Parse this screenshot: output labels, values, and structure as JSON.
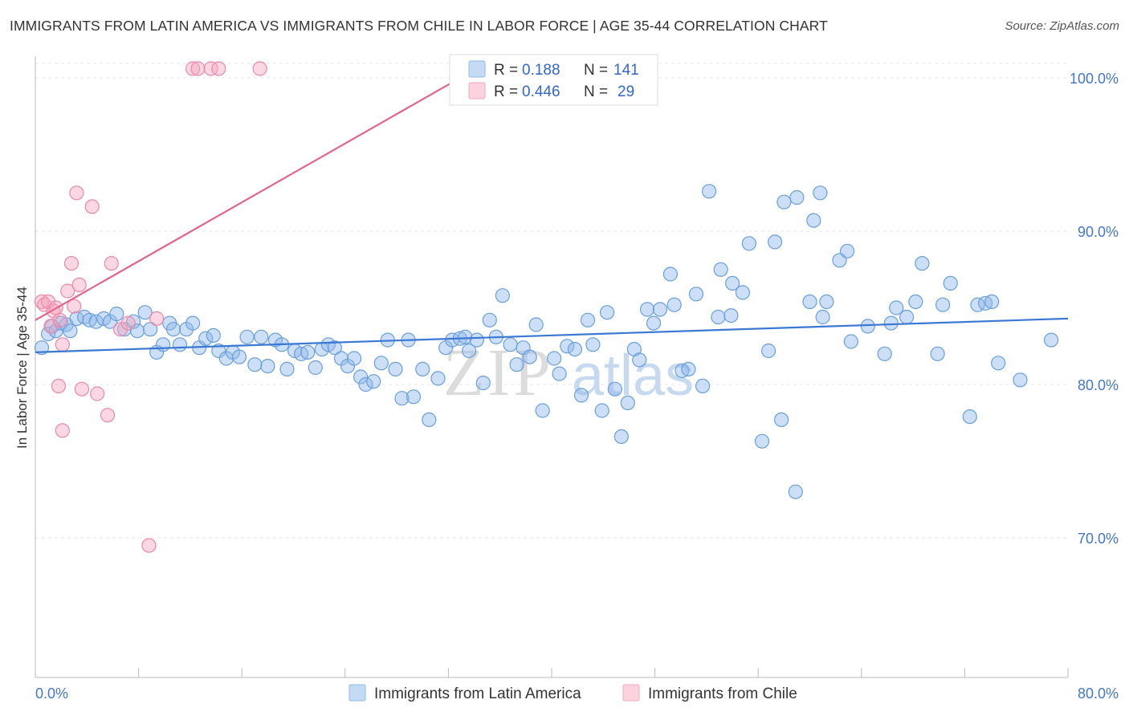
{
  "title": "IMMIGRANTS FROM LATIN AMERICA VS IMMIGRANTS FROM CHILE IN LABOR FORCE | AGE 35-44 CORRELATION CHART",
  "source": "Source: ZipAtlas.com",
  "watermark": {
    "zip": "ZIP",
    "atlas": "atlas"
  },
  "chart_data": {
    "type": "scatter",
    "ylabel": "In Labor Force | Age 35-44",
    "xlim": [
      0,
      80
    ],
    "ylim": [
      60,
      102
    ],
    "x_ticks": [
      {
        "value": 0,
        "label": "0.0%"
      },
      {
        "value": 80,
        "label": "80.0%"
      }
    ],
    "y_ticks": [
      {
        "value": 100,
        "label": "100.0%"
      },
      {
        "value": 90,
        "label": "90.0%"
      },
      {
        "value": 80,
        "label": "80.0%"
      },
      {
        "value": 70,
        "label": "70.0%"
      }
    ],
    "grid": true,
    "legend_position": "top-center",
    "legend": [
      {
        "r_label": "R =",
        "r": "0.188",
        "n_label": "N =",
        "n": "141",
        "color": "#8fb8ec"
      },
      {
        "r_label": "R =",
        "r": "0.446",
        "n_label": "N =",
        "n": "29",
        "color": "#f5a7bf"
      }
    ],
    "series": [
      {
        "name": "Immigrants from Latin America",
        "color": "#8fb8ec",
        "stroke": "#6a9fdc",
        "trend": {
          "x1": 0,
          "y1": 82.1,
          "x2": 80,
          "y2": 84.3,
          "color": "#3a78d4"
        },
        "points": [
          [
            0.5,
            82.4
          ],
          [
            1,
            83.3
          ],
          [
            1.3,
            83.8
          ],
          [
            1.6,
            83.5
          ],
          [
            2,
            84
          ],
          [
            2.4,
            83.9
          ],
          [
            2.7,
            83.5
          ],
          [
            3.2,
            84.3
          ],
          [
            3.8,
            84.4
          ],
          [
            4.2,
            84.2
          ],
          [
            4.7,
            84.1
          ],
          [
            5.3,
            84.3
          ],
          [
            5.8,
            84.1
          ],
          [
            6.3,
            84.6
          ],
          [
            6.9,
            83.6
          ],
          [
            7.6,
            84.1
          ],
          [
            7.9,
            83.5
          ],
          [
            8.5,
            84.7
          ],
          [
            8.9,
            83.6
          ],
          [
            9.4,
            82.1
          ],
          [
            9.9,
            82.6
          ],
          [
            10.4,
            84
          ],
          [
            10.7,
            83.6
          ],
          [
            11.2,
            82.6
          ],
          [
            11.7,
            83.6
          ],
          [
            12.2,
            84
          ],
          [
            12.7,
            82.4
          ],
          [
            13.2,
            83
          ],
          [
            13.8,
            83.2
          ],
          [
            14.2,
            82.2
          ],
          [
            14.8,
            81.7
          ],
          [
            15.3,
            82.1
          ],
          [
            15.8,
            81.8
          ],
          [
            16.4,
            83.1
          ],
          [
            17,
            81.3
          ],
          [
            17.5,
            83.1
          ],
          [
            18,
            81.2
          ],
          [
            18.6,
            82.9
          ],
          [
            19.1,
            82.6
          ],
          [
            19.5,
            81
          ],
          [
            20.1,
            82.2
          ],
          [
            20.6,
            82
          ],
          [
            21.1,
            82.1
          ],
          [
            21.7,
            81.1
          ],
          [
            22.2,
            82.3
          ],
          [
            22.7,
            82.6
          ],
          [
            23.2,
            82.4
          ],
          [
            23.7,
            81.7
          ],
          [
            24.2,
            81.2
          ],
          [
            24.7,
            81.7
          ],
          [
            25.2,
            80.5
          ],
          [
            25.6,
            80
          ],
          [
            26.2,
            80.2
          ],
          [
            26.8,
            81.4
          ],
          [
            27.3,
            82.9
          ],
          [
            27.9,
            81
          ],
          [
            28.4,
            79.1
          ],
          [
            28.9,
            82.9
          ],
          [
            29.3,
            79.2
          ],
          [
            30,
            81
          ],
          [
            30.5,
            77.7
          ],
          [
            31.2,
            80.4
          ],
          [
            31.8,
            82.4
          ],
          [
            32.3,
            82.9
          ],
          [
            32.9,
            83
          ],
          [
            33.3,
            83.1
          ],
          [
            33.6,
            82.2
          ],
          [
            34.2,
            82.9
          ],
          [
            34.7,
            80.1
          ],
          [
            35.2,
            84.2
          ],
          [
            35.7,
            83.1
          ],
          [
            36.2,
            85.8
          ],
          [
            36.8,
            82.6
          ],
          [
            37.3,
            81.3
          ],
          [
            37.8,
            82.4
          ],
          [
            38.3,
            81.8
          ],
          [
            38.8,
            83.9
          ],
          [
            39.3,
            78.3
          ],
          [
            40.2,
            81.7
          ],
          [
            40.6,
            80.7
          ],
          [
            41.2,
            82.5
          ],
          [
            41.8,
            82.3
          ],
          [
            42.3,
            79.3
          ],
          [
            42.8,
            84.2
          ],
          [
            43.2,
            82.6
          ],
          [
            43.9,
            78.3
          ],
          [
            44.3,
            84.7
          ],
          [
            44.9,
            79.7
          ],
          [
            45.4,
            76.6
          ],
          [
            45.9,
            78.8
          ],
          [
            46.4,
            82.3
          ],
          [
            46.8,
            81.6
          ],
          [
            47.4,
            84.9
          ],
          [
            47.9,
            84
          ],
          [
            48.4,
            84.9
          ],
          [
            49.2,
            87.2
          ],
          [
            49.5,
            85.2
          ],
          [
            50.1,
            80.9
          ],
          [
            50.6,
            81
          ],
          [
            51.2,
            85.9
          ],
          [
            51.7,
            79.9
          ],
          [
            52.2,
            92.6
          ],
          [
            52.9,
            84.4
          ],
          [
            53.1,
            87.5
          ],
          [
            53.9,
            84.5
          ],
          [
            54,
            86.6
          ],
          [
            54.8,
            86
          ],
          [
            55.3,
            89.2
          ],
          [
            56.3,
            76.3
          ],
          [
            56.8,
            82.2
          ],
          [
            57.3,
            89.3
          ],
          [
            57.8,
            77.7
          ],
          [
            58,
            91.9
          ],
          [
            58.9,
            73
          ],
          [
            59,
            92.2
          ],
          [
            60,
            85.4
          ],
          [
            60.3,
            90.7
          ],
          [
            60.8,
            92.5
          ],
          [
            61,
            84.4
          ],
          [
            61.3,
            85.4
          ],
          [
            62.3,
            88.1
          ],
          [
            62.9,
            88.7
          ],
          [
            63.2,
            82.8
          ],
          [
            64.5,
            83.8
          ],
          [
            65.8,
            82
          ],
          [
            66.3,
            84
          ],
          [
            66.7,
            85
          ],
          [
            67.5,
            84.4
          ],
          [
            68.2,
            85.4
          ],
          [
            68.7,
            87.9
          ],
          [
            69.9,
            82
          ],
          [
            70.3,
            85.2
          ],
          [
            70.9,
            86.6
          ],
          [
            72.4,
            77.9
          ],
          [
            73,
            85.2
          ],
          [
            73.6,
            85.3
          ],
          [
            74.1,
            85.4
          ],
          [
            74.6,
            81.4
          ],
          [
            76.3,
            80.3
          ],
          [
            78.7,
            82.9
          ]
        ]
      },
      {
        "name": "Immigrants from Chile",
        "color": "#f5a7bf",
        "stroke": "#ea88a8",
        "trend": {
          "x1": 0,
          "y1": 84.2,
          "x2": 35,
          "y2": 101,
          "color": "#e0668f"
        },
        "points": [
          [
            0.5,
            85.4
          ],
          [
            0.7,
            85.2
          ],
          [
            1.0,
            85.4
          ],
          [
            1.2,
            83.8
          ],
          [
            1.4,
            84.8
          ],
          [
            1.6,
            85
          ],
          [
            1.8,
            79.9
          ],
          [
            1.9,
            84.2
          ],
          [
            2.1,
            82.6
          ],
          [
            2.1,
            77
          ],
          [
            2.5,
            86.1
          ],
          [
            2.8,
            87.9
          ],
          [
            3.0,
            85.1
          ],
          [
            3.2,
            92.5
          ],
          [
            3.4,
            86.5
          ],
          [
            3.6,
            79.7
          ],
          [
            4.4,
            91.6
          ],
          [
            4.8,
            79.4
          ],
          [
            5.6,
            78
          ],
          [
            5.9,
            87.9
          ],
          [
            6.6,
            83.6
          ],
          [
            7.2,
            84
          ],
          [
            8.8,
            69.5
          ],
          [
            9.4,
            84.3
          ],
          [
            12.2,
            100.6
          ],
          [
            12.6,
            100.6
          ],
          [
            13.6,
            100.6
          ],
          [
            14.2,
            100.6
          ],
          [
            17.4,
            100.6
          ]
        ]
      }
    ]
  }
}
